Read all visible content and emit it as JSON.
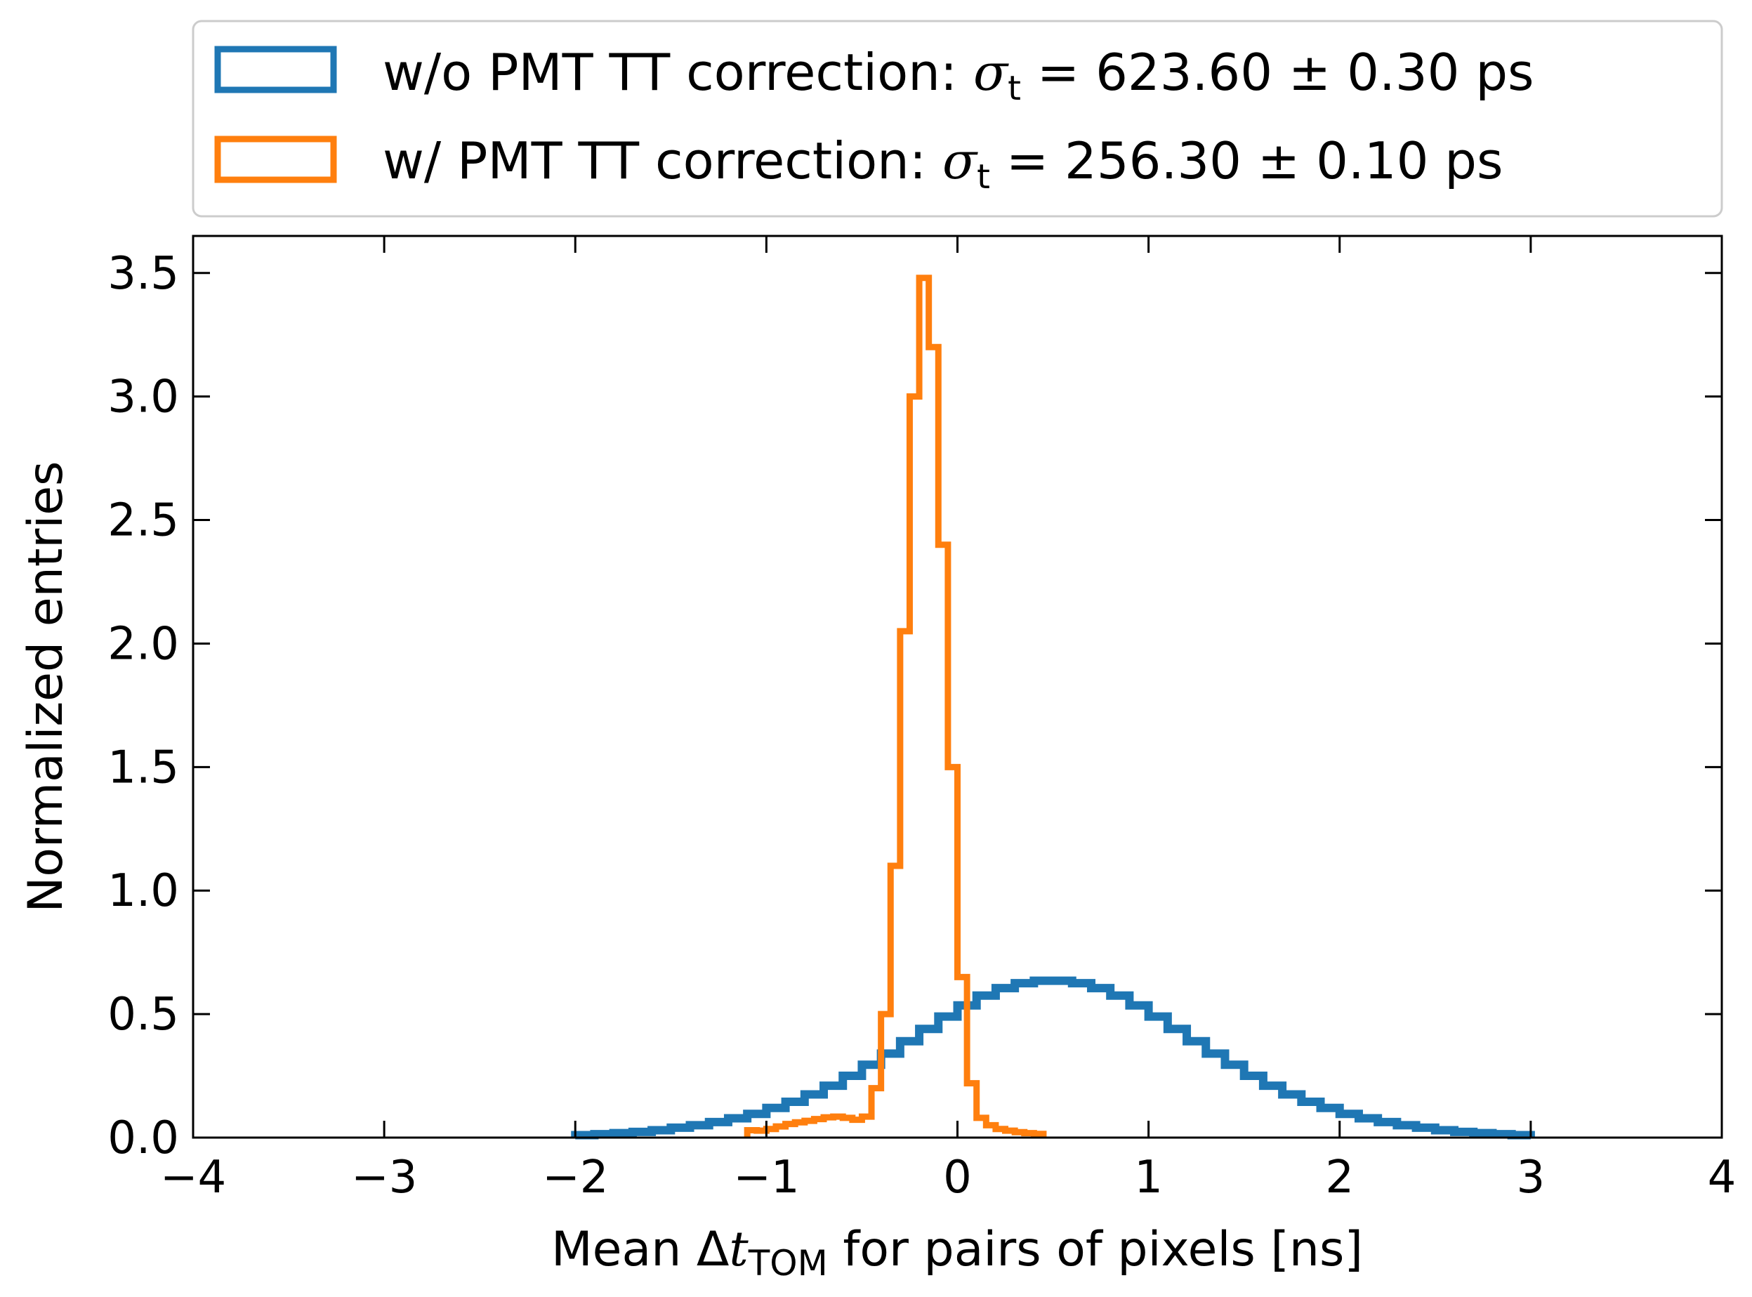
{
  "chart_data": {
    "type": "step-histogram",
    "xlabel": {
      "prefix": "Mean Δ",
      "var": "t",
      "sub": "TOM",
      "suffix": " for pairs of pixels [ns]"
    },
    "ylabel": "Normalized entries",
    "xlim": [
      -4,
      4
    ],
    "ylim": [
      0,
      3.65
    ],
    "xticks": [
      -4,
      -3,
      -2,
      -1,
      0,
      1,
      2,
      3,
      4
    ],
    "xtick_labels": [
      "−4",
      "−3",
      "−2",
      "−1",
      "0",
      "1",
      "2",
      "3",
      "4"
    ],
    "yticks": [
      0,
      0.5,
      1,
      1.5,
      2,
      2.5,
      3,
      3.5
    ],
    "ytick_labels": [
      "0.0",
      "0.5",
      "1.0",
      "1.5",
      "2.0",
      "2.5",
      "3.0",
      "3.5"
    ],
    "legend": {
      "position": "above plot, full width"
    },
    "series": [
      {
        "name": "w/o PMT TT correction",
        "legend_label": "w/o PMT TT correction: ",
        "sigma_symbol": "σ",
        "sigma_sub": "t",
        "sigma_value": " = 623.60 ± 0.30 ps",
        "color": "#1f77b4",
        "bin_width": 0.1,
        "bin_edges_start": -2.0,
        "values": [
          0.01,
          0.014,
          0.018,
          0.023,
          0.03,
          0.04,
          0.05,
          0.063,
          0.078,
          0.096,
          0.12,
          0.145,
          0.175,
          0.21,
          0.25,
          0.295,
          0.34,
          0.39,
          0.44,
          0.49,
          0.535,
          0.575,
          0.605,
          0.625,
          0.635,
          0.635,
          0.625,
          0.605,
          0.575,
          0.535,
          0.49,
          0.44,
          0.39,
          0.34,
          0.295,
          0.25,
          0.21,
          0.175,
          0.145,
          0.12,
          0.096,
          0.078,
          0.063,
          0.05,
          0.04,
          0.03,
          0.023,
          0.018,
          0.014,
          0.01
        ]
      },
      {
        "name": "w/ PMT TT correction",
        "legend_label": "w/   PMT TT correction: ",
        "sigma_symbol": "σ",
        "sigma_sub": "t",
        "sigma_value": " = 256.30 ± 0.10 ps",
        "color": "#ff7f0e",
        "bin_width": 0.05,
        "bin_edges_start": -1.1,
        "values": [
          0.03,
          0.028,
          0.035,
          0.045,
          0.055,
          0.062,
          0.068,
          0.075,
          0.082,
          0.085,
          0.08,
          0.072,
          0.085,
          0.2,
          0.5,
          1.1,
          2.05,
          3.0,
          3.48,
          3.2,
          2.4,
          1.5,
          0.65,
          0.22,
          0.08,
          0.05,
          0.035,
          0.028,
          0.022,
          0.018,
          0.015
        ]
      }
    ]
  }
}
